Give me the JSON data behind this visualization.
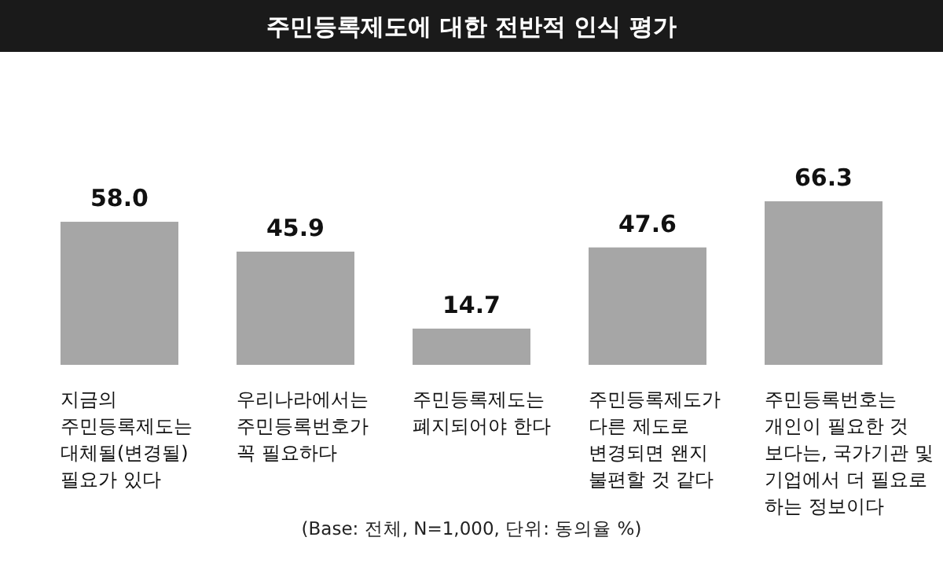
{
  "chart_data": {
    "type": "bar",
    "title": "주민등록제도에 대한 전반적 인식 평가",
    "categories": [
      "지금의\n주민등록제도는\n대체될(변경될)\n필요가 있다",
      "우리나라에서는\n주민등록번호가\n꼭 필요하다",
      "주민등록제도는\n폐지되어야 한다",
      "주민등록제도가\n다른 제도로\n변경되면 왠지\n불편할 것 같다",
      "주민등록번호는\n개인이 필요한 것\n보다는, 국가기관 및\n기업에서 더 필요로\n하는 정보이다"
    ],
    "values": [
      58.0,
      45.9,
      14.7,
      47.6,
      66.3
    ],
    "value_labels": [
      "58.0",
      "45.9",
      "14.7",
      "47.6",
      "66.3"
    ],
    "color": "#a6a6a6",
    "annotations": [
      "(Base: 전체, N=1,000, 단위: 동의율 %)"
    ]
  }
}
